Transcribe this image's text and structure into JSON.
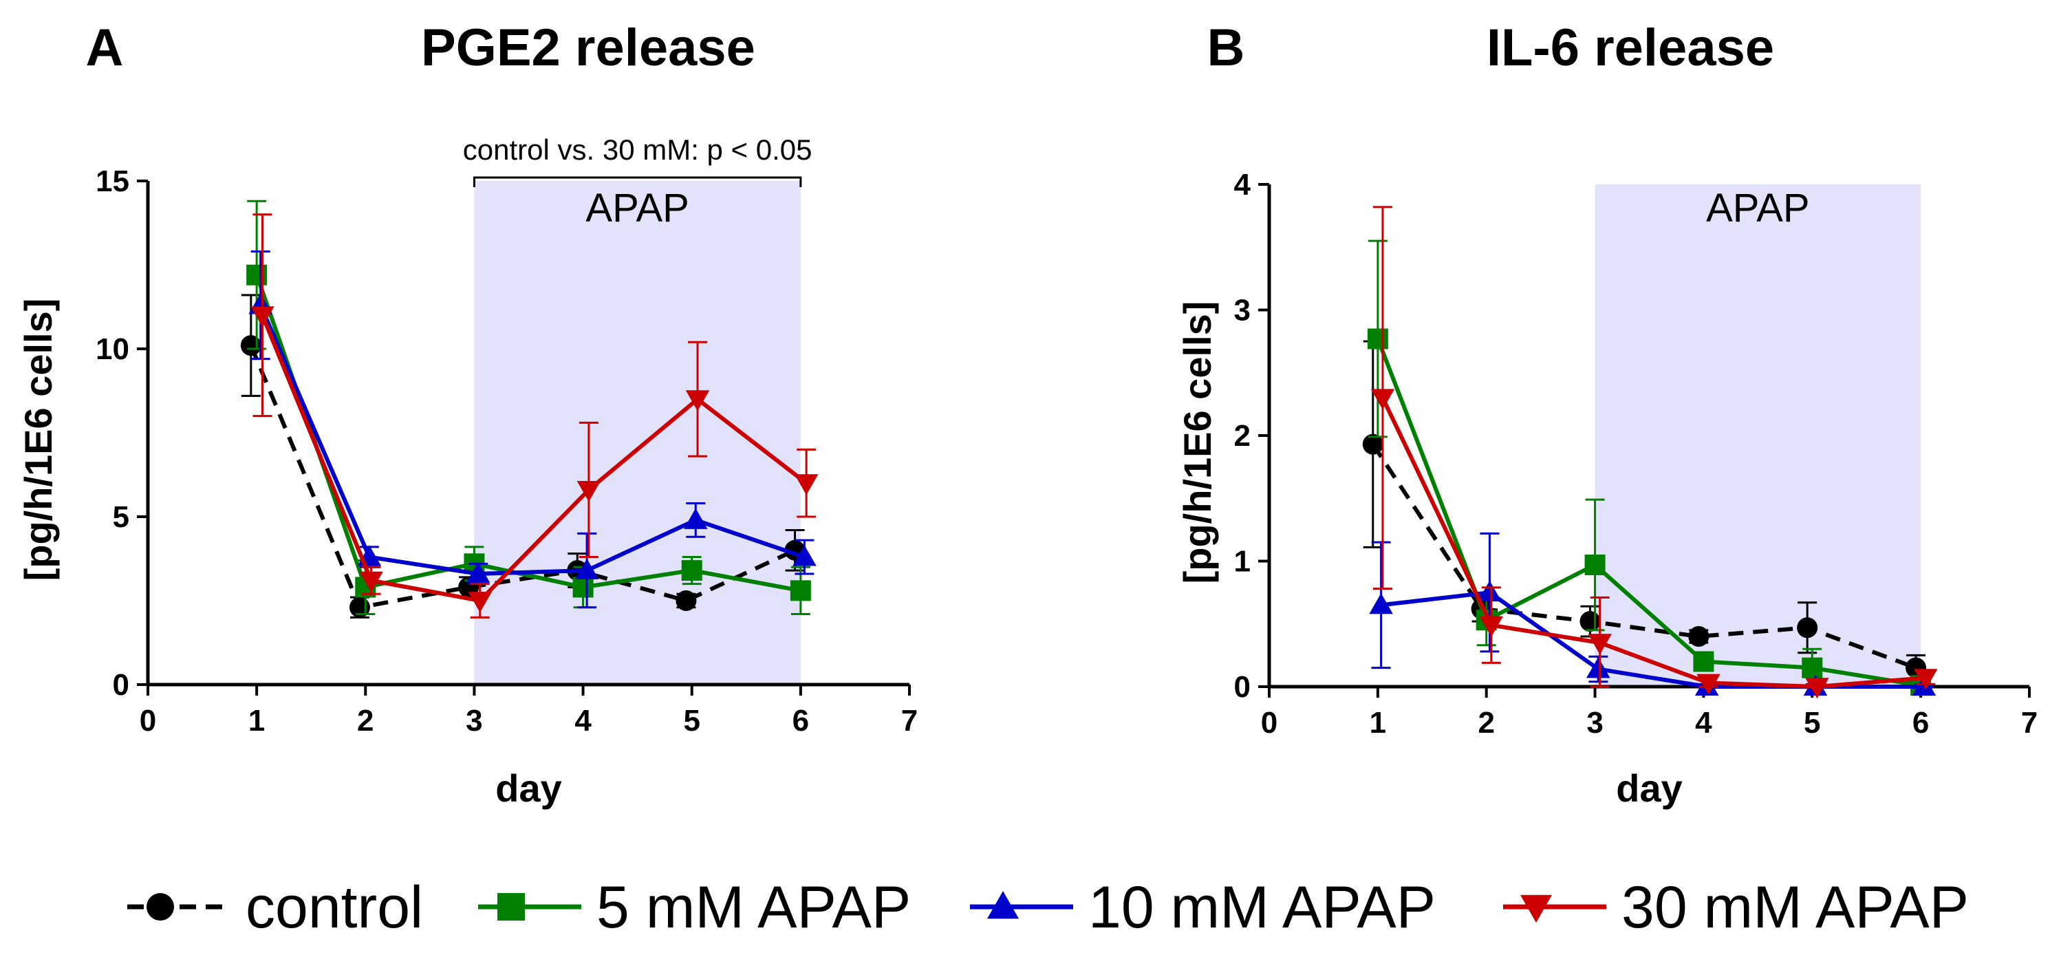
{
  "legend": [
    {
      "label": "control",
      "color": "#000000",
      "marker": "circle",
      "dashed": true
    },
    {
      "label": "5 mM APAP",
      "color": "#008000",
      "marker": "square",
      "dashed": false
    },
    {
      "label": "10 mM APAP",
      "color": "#0000cc",
      "marker": "triangle-up",
      "dashed": false
    },
    {
      "label": "30 mM APAP",
      "color": "#cc0000",
      "marker": "triangle-down",
      "dashed": false
    }
  ],
  "chart_data": [
    {
      "type": "line",
      "panel": "A",
      "title": "PGE2 release",
      "xlabel": "day",
      "ylabel": "[pg/h/1E6 cells]",
      "xlim": [
        0,
        7
      ],
      "ylim": [
        0,
        15
      ],
      "xticks": [
        0,
        1,
        2,
        3,
        4,
        5,
        6,
        7
      ],
      "yticks": [
        0,
        5,
        10,
        15
      ],
      "shaded_region": {
        "x": [
          3,
          6
        ],
        "label": "APAP"
      },
      "annotation": {
        "text": "control vs. 30 mM: p < 0.05",
        "x": [
          3,
          6
        ]
      },
      "series": [
        {
          "name": "control",
          "x": [
            1,
            2,
            3,
            4,
            5,
            6
          ],
          "values": [
            10.1,
            2.3,
            2.9,
            3.4,
            2.5,
            4.0
          ],
          "err": [
            1.5,
            0.3,
            0.3,
            0.5,
            0.2,
            0.6
          ]
        },
        {
          "name": "5 mM APAP",
          "x": [
            1,
            2,
            3,
            4,
            5,
            6
          ],
          "values": [
            12.2,
            2.9,
            3.6,
            2.9,
            3.4,
            2.8
          ],
          "err": [
            2.2,
            0.8,
            0.5,
            0.6,
            0.4,
            0.7
          ]
        },
        {
          "name": "10 mM APAP",
          "x": [
            1,
            2,
            3,
            4,
            5,
            6
          ],
          "values": [
            11.3,
            3.8,
            3.3,
            3.4,
            4.9,
            3.8
          ],
          "err": [
            1.6,
            0.3,
            0.3,
            1.1,
            0.5,
            0.5
          ]
        },
        {
          "name": "30 mM APAP",
          "x": [
            1,
            2,
            3,
            4,
            5,
            6
          ],
          "values": [
            11.0,
            3.1,
            2.5,
            5.8,
            8.5,
            6.0
          ],
          "err": [
            3.0,
            0.4,
            0.5,
            2.0,
            1.7,
            1.0
          ]
        }
      ]
    },
    {
      "type": "line",
      "panel": "B",
      "title": "IL-6 release",
      "xlabel": "day",
      "ylabel": "[pg/h/1E6 cells]",
      "xlim": [
        0,
        7
      ],
      "ylim": [
        0,
        4
      ],
      "xticks": [
        0,
        1,
        2,
        3,
        4,
        5,
        6,
        7
      ],
      "yticks": [
        0,
        1,
        2,
        3,
        4
      ],
      "shaded_region": {
        "x": [
          3,
          6
        ],
        "label": "APAP"
      },
      "series": [
        {
          "name": "control",
          "x": [
            1,
            2,
            3,
            4,
            5,
            6
          ],
          "values": [
            1.93,
            0.62,
            0.52,
            0.4,
            0.47,
            0.15
          ],
          "err": [
            0.82,
            0.1,
            0.12,
            0.05,
            0.2,
            0.1
          ]
        },
        {
          "name": "5 mM APAP",
          "x": [
            1,
            2,
            3,
            4,
            5,
            6
          ],
          "values": [
            2.77,
            0.53,
            0.97,
            0.2,
            0.15,
            0.01
          ],
          "err": [
            0.78,
            0.2,
            0.52,
            0.05,
            0.15,
            0.02
          ]
        },
        {
          "name": "10 mM APAP",
          "x": [
            1,
            2,
            3,
            4,
            5,
            6
          ],
          "values": [
            0.65,
            0.75,
            0.14,
            0.0,
            0.0,
            0.0
          ],
          "err": [
            0.5,
            0.47,
            0.1,
            0.02,
            0.02,
            0.02
          ]
        },
        {
          "name": "30 mM APAP",
          "x": [
            1,
            2,
            3,
            4,
            5,
            6
          ],
          "values": [
            2.3,
            0.49,
            0.35,
            0.03,
            0.0,
            0.07
          ],
          "err": [
            1.52,
            0.3,
            0.36,
            0.05,
            0.02,
            0.05
          ]
        }
      ]
    }
  ]
}
